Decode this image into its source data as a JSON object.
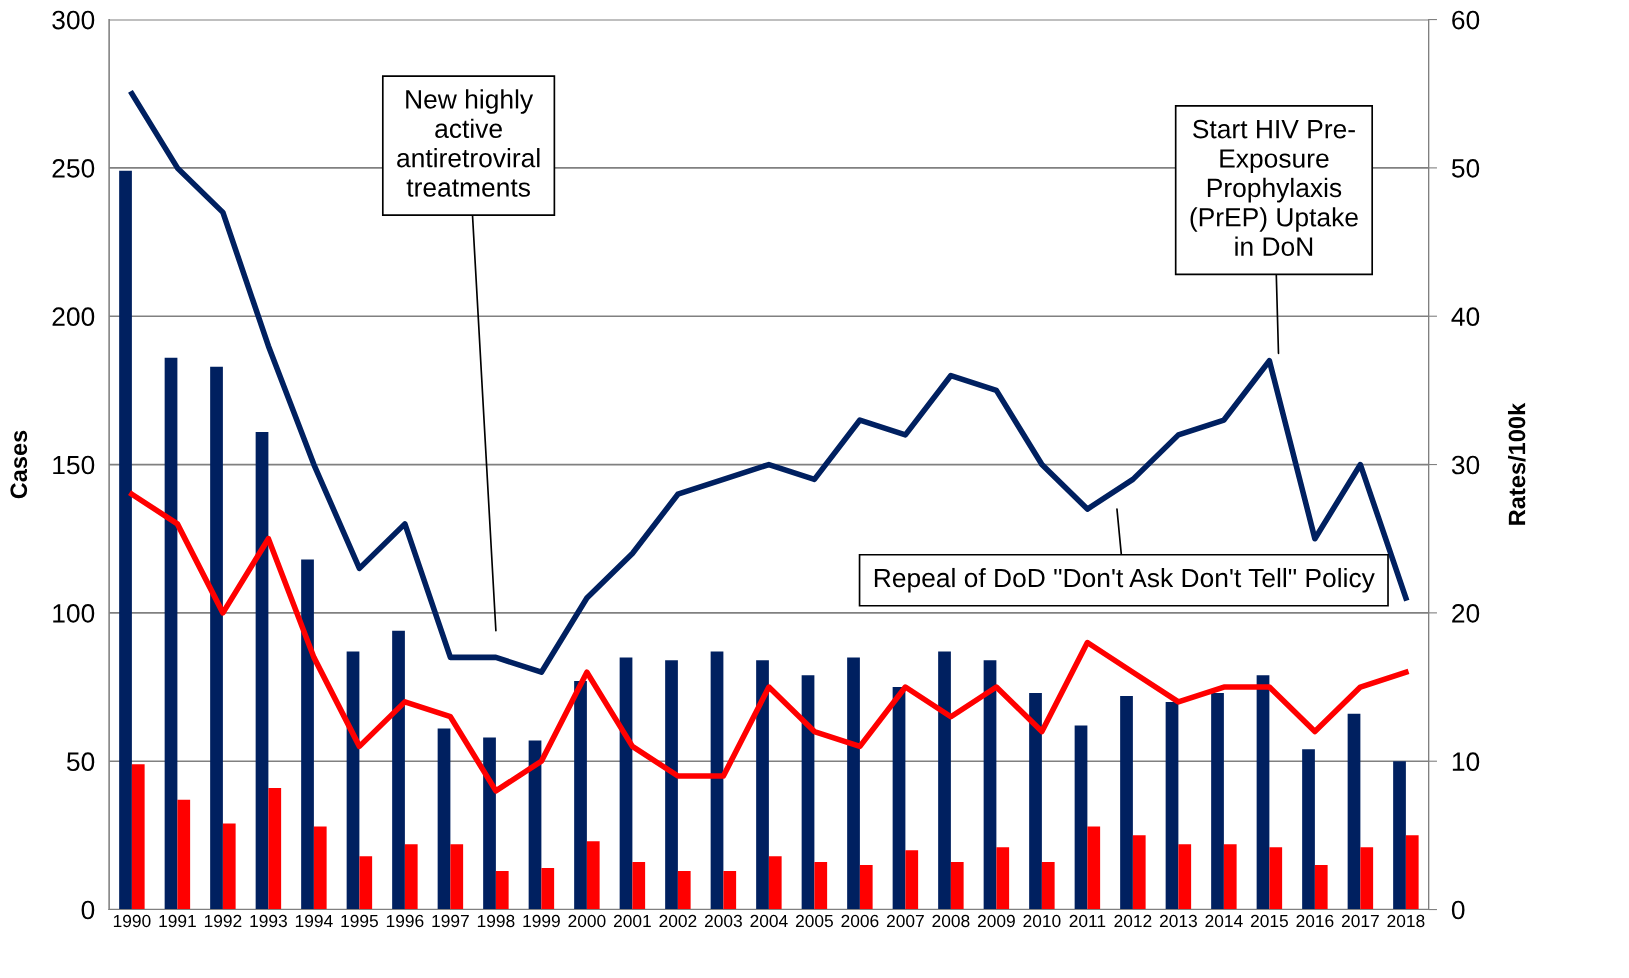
{
  "chart_data": {
    "type": "bar",
    "ylabel": "Cases",
    "y2label": "Rates/100k",
    "categories": [
      "1990",
      "1991",
      "1992",
      "1993",
      "1994",
      "1995",
      "1996",
      "1997",
      "1998",
      "1999",
      "2000",
      "2001",
      "2002",
      "2003",
      "2004",
      "2005",
      "2006",
      "2007",
      "2008",
      "2009",
      "2010",
      "2011",
      "2012",
      "2013",
      "2014",
      "2015",
      "2016",
      "2017",
      "2018"
    ],
    "series": [
      {
        "color": "#002060",
        "values": [
          249,
          186,
          183,
          161,
          118,
          87,
          94,
          61,
          58,
          57,
          77,
          85,
          84,
          87,
          84,
          79,
          85,
          75,
          87,
          84,
          73,
          62,
          72,
          70,
          73,
          79,
          54,
          66,
          50
        ]
      },
      {
        "color": "#ff0000",
        "values": [
          49,
          37,
          29,
          41,
          28,
          18,
          22,
          22,
          13,
          14,
          23,
          16,
          13,
          13,
          18,
          16,
          15,
          20,
          16,
          21,
          16,
          28,
          25,
          22,
          22,
          21,
          15,
          21,
          25
        ]
      },
      {
        "type": "line",
        "axis": "y2",
        "color": "#002060",
        "values": [
          55,
          50,
          47,
          38,
          30,
          23,
          26,
          17,
          17,
          16,
          21,
          24,
          28,
          29,
          30,
          29,
          33,
          32,
          36,
          35,
          30,
          27,
          29,
          32,
          33,
          37,
          25,
          30,
          21
        ]
      },
      {
        "type": "line",
        "axis": "y2",
        "color": "#ff0000",
        "values": [
          28,
          26,
          20,
          25,
          17,
          11,
          14,
          13,
          8,
          10,
          16,
          11,
          9,
          9,
          15,
          12,
          11,
          15,
          13,
          15,
          12,
          18,
          16,
          14,
          15,
          15,
          12,
          15,
          16
        ]
      }
    ],
    "ylim": [
      0,
      300
    ],
    "yticks": [
      0,
      50,
      100,
      150,
      200,
      250,
      300
    ],
    "y2lim": [
      0,
      60
    ],
    "y2ticks": [
      0,
      10,
      20,
      30,
      40,
      50,
      60
    ],
    "grid": "y",
    "marker": "none",
    "line_style": "solid",
    "annotations": [
      "New highly\nactive\nantiretroviral\ntreatments",
      "Start HIV Pre-\nExposure\nProphylaxis\n(PrEP) Uptake\nin DoN",
      "Repeal of DoD \"Don't Ask Don't Tell\" Policy"
    ]
  }
}
